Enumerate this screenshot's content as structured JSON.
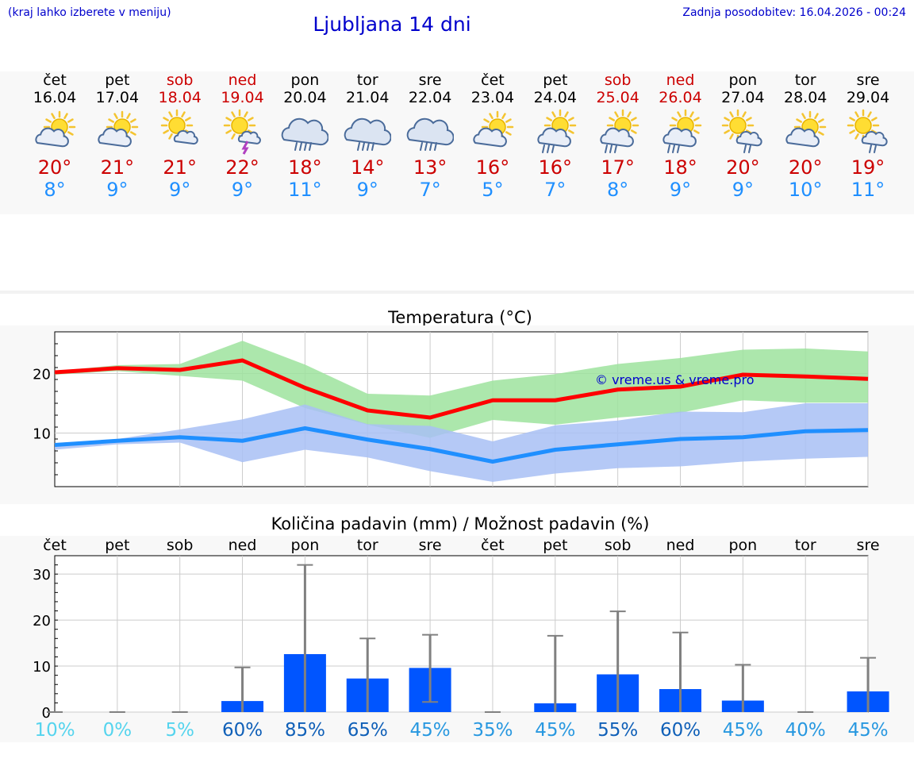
{
  "header": {
    "menu_hint": "(kraj lahko izberete v meniju)",
    "title": "Ljubljana 14 dni",
    "last_update": "Zadnja posodobitev: 16.04.2026 - 00:24"
  },
  "colors": {
    "accent": "#0000cc",
    "max_temp": "#cc0000",
    "min_temp": "#1f8fff",
    "weekend": "#cc0000",
    "bar": "#0055ff"
  },
  "days": [
    {
      "name": "čet",
      "date": "16.04",
      "weekend": false,
      "icon": "partly-cloudy-icon",
      "max": "20°",
      "min": "8°"
    },
    {
      "name": "pet",
      "date": "17.04",
      "weekend": false,
      "icon": "partly-cloudy-icon",
      "max": "21°",
      "min": "9°"
    },
    {
      "name": "sob",
      "date": "18.04",
      "weekend": true,
      "icon": "sun-small-cloud-icon",
      "max": "21°",
      "min": "9°"
    },
    {
      "name": "ned",
      "date": "19.04",
      "weekend": true,
      "icon": "sun-thunder-icon",
      "max": "22°",
      "min": "9°"
    },
    {
      "name": "pon",
      "date": "20.04",
      "weekend": false,
      "icon": "cloud-rain-icon",
      "max": "18°",
      "min": "11°"
    },
    {
      "name": "tor",
      "date": "21.04",
      "weekend": false,
      "icon": "cloud-rain-icon",
      "max": "14°",
      "min": "9°"
    },
    {
      "name": "sre",
      "date": "22.04",
      "weekend": false,
      "icon": "cloud-rain-icon",
      "max": "13°",
      "min": "7°"
    },
    {
      "name": "čet",
      "date": "23.04",
      "weekend": false,
      "icon": "partly-cloudy-icon",
      "max": "16°",
      "min": "5°"
    },
    {
      "name": "pet",
      "date": "24.04",
      "weekend": false,
      "icon": "sun-cloud-rain-icon",
      "max": "16°",
      "min": "7°"
    },
    {
      "name": "sob",
      "date": "25.04",
      "weekend": true,
      "icon": "sun-cloud-rain-icon",
      "max": "17°",
      "min": "8°"
    },
    {
      "name": "ned",
      "date": "26.04",
      "weekend": true,
      "icon": "sun-cloud-rain-icon",
      "max": "18°",
      "min": "9°"
    },
    {
      "name": "pon",
      "date": "27.04",
      "weekend": false,
      "icon": "sun-small-cloud-rain-icon",
      "max": "20°",
      "min": "9°"
    },
    {
      "name": "tor",
      "date": "28.04",
      "weekend": false,
      "icon": "partly-cloudy-icon",
      "max": "20°",
      "min": "10°"
    },
    {
      "name": "sre",
      "date": "29.04",
      "weekend": false,
      "icon": "sun-small-cloud-rain-icon",
      "max": "19°",
      "min": "11°"
    }
  ],
  "chart_data": [
    {
      "type": "line",
      "title": "Temperatura (°C)",
      "watermark": "© vreme.us & vreme.pro",
      "x": [
        "16.04",
        "17.04",
        "18.04",
        "19.04",
        "20.04",
        "21.04",
        "22.04",
        "23.04",
        "24.04",
        "25.04",
        "26.04",
        "27.04",
        "28.04",
        "29.04"
      ],
      "yticks": [
        10,
        20
      ],
      "ylim": [
        1,
        27
      ],
      "series": [
        {
          "role": "max",
          "color": "#ff0000",
          "values": [
            20.2,
            20.9,
            20.6,
            22.2,
            17.6,
            13.8,
            12.6,
            15.5,
            15.5,
            17.3,
            17.8,
            19.8,
            19.5,
            19.1
          ]
        },
        {
          "role": "min",
          "color": "#1f8fff",
          "values": [
            8.0,
            8.7,
            9.3,
            8.7,
            10.8,
            8.9,
            7.3,
            5.2,
            7.2,
            8.1,
            9.0,
            9.3,
            10.3,
            10.5
          ]
        }
      ],
      "bands": [
        {
          "role": "max-range",
          "color": "#9ee39e",
          "low": [
            19.8,
            20.4,
            19.6,
            18.8,
            14.2,
            11.4,
            9.2,
            12.2,
            11.4,
            12.6,
            13.4,
            15.5,
            15.1,
            15.1
          ],
          "high": [
            20.4,
            21.4,
            21.6,
            25.5,
            21.5,
            16.6,
            16.3,
            18.8,
            19.9,
            21.6,
            22.6,
            24.0,
            24.2,
            23.7
          ]
        },
        {
          "role": "min-range",
          "color": "#a8c0f4",
          "low": [
            7.2,
            8.1,
            8.4,
            5.1,
            7.2,
            5.9,
            3.6,
            1.8,
            3.2,
            4.1,
            4.4,
            5.2,
            5.7,
            6.0
          ],
          "high": [
            8.3,
            9.0,
            10.6,
            12.3,
            14.8,
            11.5,
            11.2,
            8.6,
            11.3,
            12.1,
            13.6,
            13.5,
            15.0,
            15.0
          ]
        }
      ]
    },
    {
      "type": "bar",
      "title": "Količina padavin (mm) / Možnost padavin (%)",
      "categories": [
        "čet",
        "pet",
        "sob",
        "ned",
        "pon",
        "tor",
        "sre",
        "čet",
        "pet",
        "sob",
        "ned",
        "pon",
        "tor",
        "sre"
      ],
      "values": [
        0,
        0,
        0,
        2.4,
        12.6,
        7.3,
        9.6,
        0,
        1.9,
        8.2,
        5.0,
        2.5,
        0,
        4.5
      ],
      "error_high": [
        0,
        0,
        0,
        9.7,
        32.0,
        16.0,
        16.8,
        0,
        16.6,
        21.9,
        17.3,
        10.3,
        0,
        11.8
      ],
      "error_low": [
        0,
        0,
        0,
        0,
        0,
        0,
        2.2,
        0,
        0,
        0,
        0,
        0,
        0,
        0
      ],
      "probability": [
        "10%",
        "0%",
        "5%",
        "60%",
        "85%",
        "65%",
        "45%",
        "35%",
        "45%",
        "55%",
        "60%",
        "45%",
        "40%",
        "45%"
      ],
      "probability_colors": [
        "#55d4ee",
        "#55d4ee",
        "#55d4ee",
        "#1060b8",
        "#1060b8",
        "#1060b8",
        "#2898e0",
        "#2898e0",
        "#2898e0",
        "#1060b8",
        "#1060b8",
        "#2898e0",
        "#2898e0",
        "#2898e0"
      ],
      "yticks": [
        0,
        10,
        20,
        30
      ],
      "ylim": [
        0,
        34
      ]
    }
  ]
}
